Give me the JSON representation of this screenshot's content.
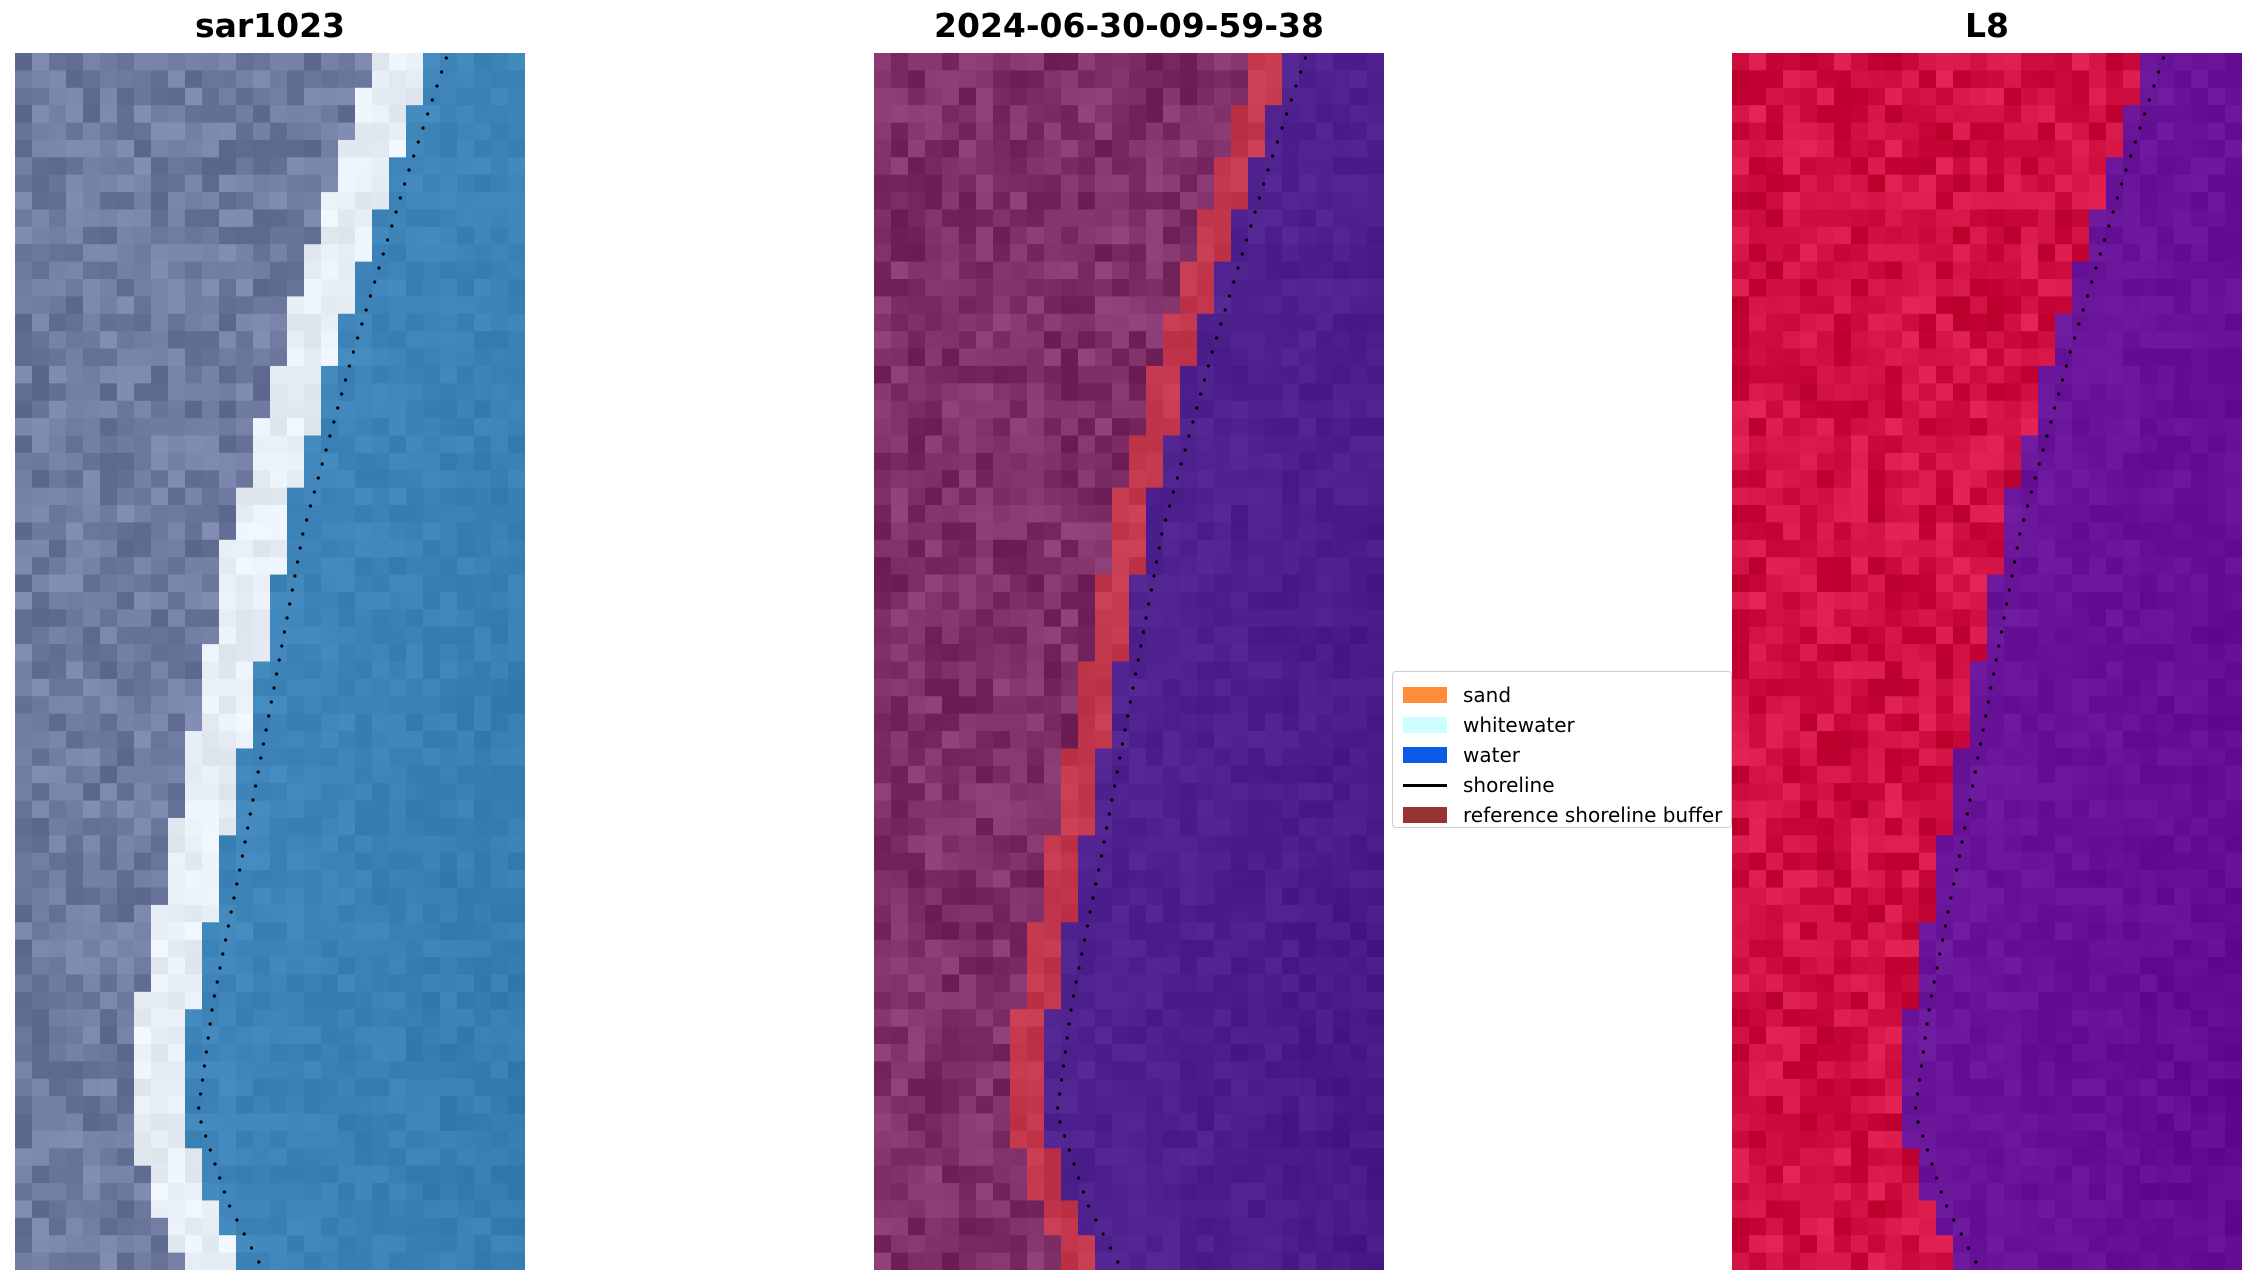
{
  "panels": [
    {
      "title": "sar1023"
    },
    {
      "title": "2024-06-30-09-59-38"
    },
    {
      "title": "L8"
    }
  ],
  "legend": {
    "items": [
      {
        "label": "sand",
        "color": "#ff8c3a",
        "kind": "patch"
      },
      {
        "label": "whitewater",
        "color": "#ccffff",
        "kind": "patch"
      },
      {
        "label": "water",
        "color": "#0a5ce6",
        "kind": "patch"
      },
      {
        "label": "shoreline",
        "color": "#000000",
        "kind": "line"
      },
      {
        "label": "reference shoreline buffer",
        "color": "#993333",
        "kind": "patch"
      }
    ]
  },
  "colors": {
    "rgb_land": "#6e7aa0",
    "rgb_water": "#3f86bb",
    "rgb_beach": "#e8eef6",
    "class_land": "#7f2f68",
    "class_water": "#512391",
    "class_sand": "#c4384e",
    "nir_land": "#cf1041",
    "nir_water": "#6b169a"
  }
}
